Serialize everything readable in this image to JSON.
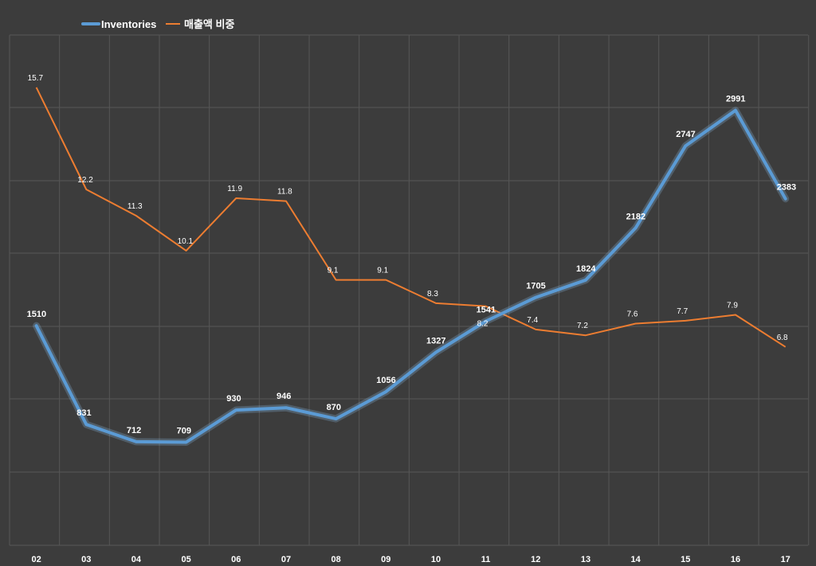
{
  "chart_data": {
    "type": "line",
    "title": "",
    "xlabel": "",
    "ylabel": "",
    "grid": true,
    "legend_position": "top-left",
    "categories": [
      "02",
      "03",
      "04",
      "05",
      "06",
      "07",
      "08",
      "09",
      "10",
      "11",
      "12",
      "13",
      "14",
      "15",
      "16",
      "17"
    ],
    "series": [
      {
        "name": "Inventories",
        "color": "#5b9bd5",
        "axis": "left",
        "ylim": [
          0,
          3500
        ],
        "values": [
          1510,
          831,
          712,
          709,
          930,
          946,
          870,
          1056,
          1327,
          1541,
          1705,
          1824,
          2182,
          2747,
          2991,
          2383
        ],
        "labels": [
          "1510",
          "831",
          "712",
          "709",
          "930",
          "946",
          "870",
          "1056",
          "1327",
          "1541",
          "1705",
          "1824",
          "2182",
          "2747",
          "2991",
          "2383"
        ]
      },
      {
        "name": "매출액 비중",
        "color": "#ed7d31",
        "axis": "right",
        "ylim": [
          0,
          20
        ],
        "values": [
          15.7,
          12.2,
          11.3,
          10.1,
          11.9,
          11.8,
          9.1,
          9.1,
          8.3,
          8.2,
          7.4,
          7.2,
          7.6,
          7.7,
          7.9,
          6.8
        ],
        "labels": [
          "15.7",
          "12.2",
          "11.3",
          "10.1",
          "11.9",
          "11.8",
          "9.1",
          "9.1",
          "8.3",
          "8.2",
          "7.4",
          "7.2",
          "7.6",
          "7.7",
          "7.9",
          "6.8"
        ]
      }
    ]
  }
}
